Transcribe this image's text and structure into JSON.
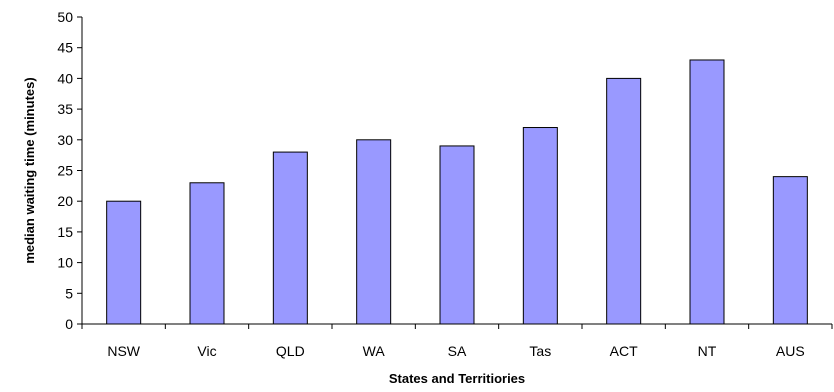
{
  "chart_data": {
    "type": "bar",
    "title": "",
    "xlabel": "States and Territiories",
    "ylabel": "median waiting time (minutes)",
    "categories": [
      "NSW",
      "Vic",
      "QLD",
      "WA",
      "SA",
      "Tas",
      "ACT",
      "NT",
      "AUS"
    ],
    "values": [
      20,
      23,
      28,
      30,
      29,
      32,
      40,
      43,
      24
    ],
    "ylim": [
      0,
      50
    ],
    "yticks": [
      0,
      5,
      10,
      15,
      20,
      25,
      30,
      35,
      40,
      45,
      50
    ],
    "grid": false,
    "legend": "none",
    "colors": {
      "bar_fill": "#9999ff",
      "bar_stroke": "#000000",
      "axis": "#000000"
    }
  }
}
